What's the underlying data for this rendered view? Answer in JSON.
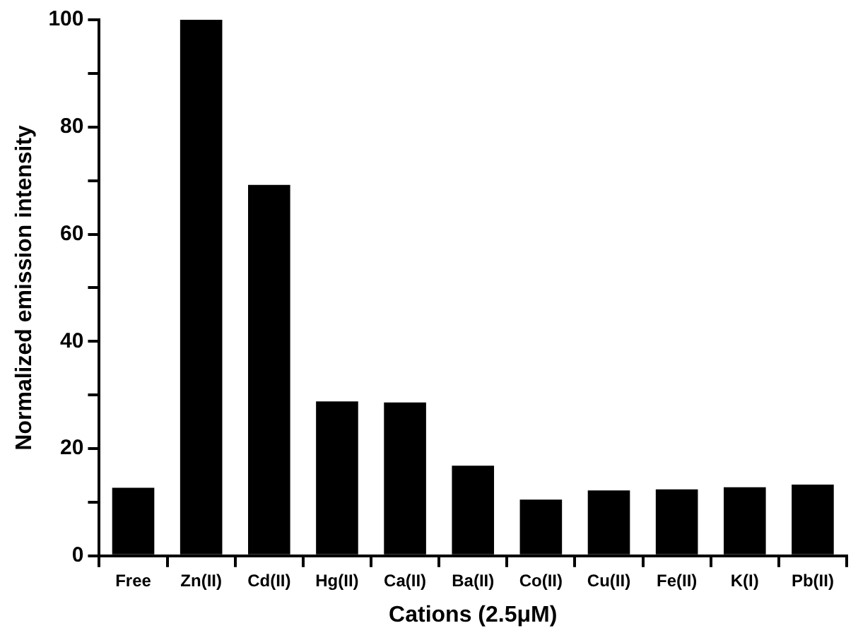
{
  "chart_data": {
    "type": "bar",
    "xlabel": "Cations (2.5μM)",
    "ylabel": "Normalized emission intensity",
    "categories": [
      "Free",
      "Zn(II)",
      "Cd(II)",
      "Hg(II)",
      "Ca(II)",
      "Ba(II)",
      "Co(II)",
      "Cu(II)",
      "Fe(II)",
      "K(I)",
      "Pb(II)"
    ],
    "values": [
      12.7,
      100,
      69.2,
      28.8,
      28.6,
      16.8,
      10.5,
      12.2,
      12.4,
      12.8,
      13.3
    ],
    "color": "#000000",
    "ylim": [
      0,
      100
    ],
    "yticks": [
      0,
      {
        "value": 10,
        "label": null
      },
      20,
      {
        "value": 30,
        "label": null
      },
      40,
      {
        "value": 50,
        "label": null
      },
      60,
      {
        "value": 70,
        "label": null
      },
      80,
      {
        "value": 90,
        "label": null
      },
      100
    ],
    "grid": false,
    "legend": false
  }
}
